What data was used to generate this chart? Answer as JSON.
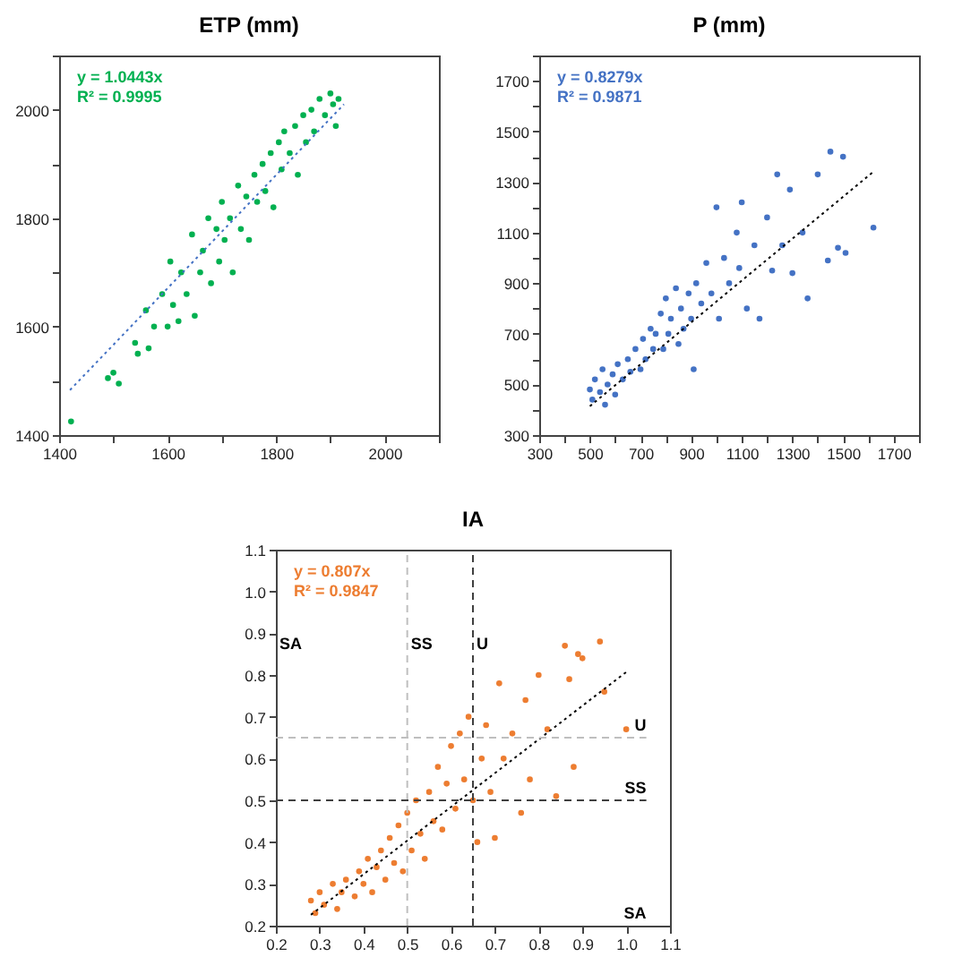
{
  "chart_data": [
    {
      "type": "scatter",
      "title": "ETP (mm)",
      "grid": false,
      "annotations": [
        "y = 1.0443x",
        "R² = 0.9995"
      ],
      "xlim": [
        1400,
        2100
      ],
      "xticks": [
        1400,
        {
          "value": 1500,
          "label": null
        },
        1600,
        {
          "value": 1700,
          "label": null
        },
        1800,
        {
          "value": 1900,
          "label": null
        },
        2000,
        {
          "value": 2100,
          "label": null
        }
      ],
      "ylim": [
        1400,
        2100
      ],
      "yticks": [
        1400,
        {
          "value": 1500,
          "label": null
        },
        1600,
        {
          "value": 1700,
          "label": null
        },
        1800,
        {
          "value": 1900,
          "label": null
        },
        2000,
        {
          "value": 2100,
          "label": null
        }
      ],
      "series": [
        {
          "type": "scatter",
          "marker": "circle",
          "color": "#00b050",
          "x": [
            1422,
            1490,
            1500,
            1510,
            1540,
            1545,
            1560,
            1565,
            1575,
            1590,
            1600,
            1605,
            1610,
            1620,
            1625,
            1635,
            1645,
            1650,
            1660,
            1665,
            1675,
            1680,
            1690,
            1695,
            1700,
            1705,
            1715,
            1720,
            1730,
            1735,
            1745,
            1750,
            1760,
            1765,
            1775,
            1780,
            1790,
            1795,
            1805,
            1810,
            1815,
            1825,
            1835,
            1840,
            1850,
            1855,
            1865,
            1870,
            1880,
            1890,
            1900,
            1905,
            1915,
            1910
          ],
          "values": [
            1425,
            1505,
            1515,
            1495,
            1570,
            1550,
            1630,
            1560,
            1600,
            1660,
            1600,
            1720,
            1640,
            1610,
            1700,
            1660,
            1770,
            1620,
            1700,
            1740,
            1800,
            1680,
            1780,
            1720,
            1830,
            1760,
            1800,
            1700,
            1860,
            1780,
            1840,
            1760,
            1880,
            1830,
            1900,
            1850,
            1920,
            1820,
            1940,
            1890,
            1960,
            1920,
            1970,
            1880,
            1990,
            1940,
            2000,
            1960,
            2020,
            1990,
            2030,
            2010,
            2020,
            1970
          ]
        },
        {
          "type": "line",
          "color": "#4472c4",
          "line_style": "dotted",
          "x": [
            1420,
            1925
          ],
          "values": [
            1483,
            2010
          ]
        }
      ]
    },
    {
      "type": "scatter",
      "title": "P (mm)",
      "grid": false,
      "annotations": [
        "y = 0.8279x",
        "R² = 0.9871"
      ],
      "xlim": [
        300,
        1800
      ],
      "xticks": [
        300,
        {
          "value": 400,
          "label": null
        },
        500,
        {
          "value": 600,
          "label": null
        },
        700,
        {
          "value": 800,
          "label": null
        },
        900,
        {
          "value": 1000,
          "label": null
        },
        1100,
        {
          "value": 1200,
          "label": null
        },
        1300,
        {
          "value": 1400,
          "label": null
        },
        1500,
        {
          "value": 1600,
          "label": null
        },
        1700,
        {
          "value": 1800,
          "label": null
        }
      ],
      "ylim": [
        300,
        1800
      ],
      "yticks": [
        300,
        {
          "value": 400,
          "label": null
        },
        500,
        {
          "value": 600,
          "label": null
        },
        700,
        {
          "value": 800,
          "label": null
        },
        900,
        {
          "value": 1000,
          "label": null
        },
        1100,
        {
          "value": 1200,
          "label": null
        },
        1300,
        {
          "value": 1400,
          "label": null
        },
        1500,
        {
          "value": 1600,
          "label": null
        },
        1700,
        {
          "value": 1800,
          "label": null
        }
      ],
      "series": [
        {
          "type": "scatter",
          "marker": "circle",
          "color": "#4472c4",
          "x": [
            500,
            510,
            520,
            540,
            550,
            560,
            570,
            590,
            600,
            610,
            630,
            650,
            660,
            680,
            700,
            710,
            720,
            740,
            750,
            760,
            780,
            790,
            800,
            810,
            820,
            840,
            850,
            860,
            870,
            890,
            900,
            910,
            920,
            940,
            960,
            980,
            1000,
            1010,
            1030,
            1050,
            1080,
            1090,
            1100,
            1120,
            1150,
            1170,
            1200,
            1220,
            1240,
            1260,
            1290,
            1300,
            1340,
            1360,
            1400,
            1440,
            1450,
            1480,
            1500,
            1510,
            1620
          ],
          "values": [
            480,
            440,
            520,
            470,
            560,
            420,
            500,
            540,
            460,
            580,
            520,
            600,
            550,
            640,
            560,
            680,
            600,
            720,
            640,
            700,
            780,
            640,
            840,
            700,
            760,
            880,
            660,
            800,
            720,
            860,
            760,
            560,
            900,
            820,
            980,
            860,
            1200,
            760,
            1000,
            900,
            1100,
            960,
            1220,
            800,
            1050,
            760,
            1160,
            950,
            1330,
            1050,
            1270,
            940,
            1100,
            840,
            1330,
            990,
            1420,
            1040,
            1400,
            1020,
            1120
          ]
        },
        {
          "type": "line",
          "color": "#000000",
          "line_style": "dotted",
          "x": [
            500,
            1620
          ],
          "values": [
            414,
            1341
          ]
        }
      ]
    },
    {
      "type": "scatter",
      "title": "IA",
      "grid": false,
      "annotations": [
        "y = 0.807x",
        "R² = 0.9847",
        "SA",
        "SA"
      ],
      "xlim": [
        0.2,
        1.1
      ],
      "xticks": [
        0.2,
        0.3,
        0.4,
        0.5,
        0.6,
        0.7,
        0.8,
        0.9,
        {
          "value": 1,
          "label": "1.0"
        },
        1.1
      ],
      "ylim": [
        0.2,
        1.1
      ],
      "yticks": [
        0.2,
        0.3,
        0.4,
        0.5,
        0.6,
        0.7,
        0.8,
        0.9,
        {
          "value": 1,
          "label": "1.0"
        },
        1.1
      ],
      "ref_lines": [
        {
          "axis": "x",
          "value": 0.5,
          "label": "SS",
          "color": "#bfbfbf",
          "line_style": "dashed"
        },
        {
          "axis": "x",
          "value": 0.65,
          "label": "U",
          "color": "#404040",
          "line_style": "dashed"
        },
        {
          "axis": "y",
          "value": 0.65,
          "label": "U",
          "color": "#bfbfbf",
          "line_style": "dashed"
        },
        {
          "axis": "y",
          "value": 0.5,
          "label": "SS",
          "color": "#404040",
          "line_style": "dashed"
        }
      ],
      "series": [
        {
          "type": "scatter",
          "marker": "circle",
          "color": "#ed7d31",
          "x": [
            0.28,
            0.29,
            0.3,
            0.31,
            0.33,
            0.34,
            0.35,
            0.36,
            0.38,
            0.39,
            0.4,
            0.41,
            0.42,
            0.43,
            0.44,
            0.45,
            0.46,
            0.47,
            0.48,
            0.49,
            0.5,
            0.51,
            0.52,
            0.53,
            0.54,
            0.55,
            0.56,
            0.57,
            0.58,
            0.59,
            0.6,
            0.61,
            0.62,
            0.63,
            0.64,
            0.65,
            0.66,
            0.67,
            0.68,
            0.69,
            0.7,
            0.71,
            0.72,
            0.74,
            0.76,
            0.77,
            0.78,
            0.8,
            0.82,
            0.84,
            0.86,
            0.87,
            0.88,
            0.89,
            0.9,
            0.94,
            0.95,
            1.0
          ],
          "values": [
            0.26,
            0.23,
            0.28,
            0.25,
            0.3,
            0.24,
            0.28,
            0.31,
            0.27,
            0.33,
            0.3,
            0.36,
            0.28,
            0.34,
            0.38,
            0.31,
            0.41,
            0.35,
            0.44,
            0.33,
            0.47,
            0.38,
            0.5,
            0.42,
            0.36,
            0.52,
            0.45,
            0.58,
            0.43,
            0.54,
            0.63,
            0.48,
            0.66,
            0.55,
            0.7,
            0.5,
            0.4,
            0.6,
            0.68,
            0.52,
            0.41,
            0.78,
            0.6,
            0.66,
            0.47,
            0.74,
            0.55,
            0.8,
            0.67,
            0.51,
            0.87,
            0.79,
            0.58,
            0.85,
            0.84,
            0.88,
            0.76,
            0.67
          ]
        },
        {
          "type": "line",
          "color": "#000000",
          "line_style": "dotted",
          "x": [
            0.28,
            1.0
          ],
          "values": [
            0.226,
            0.807
          ]
        }
      ]
    }
  ]
}
